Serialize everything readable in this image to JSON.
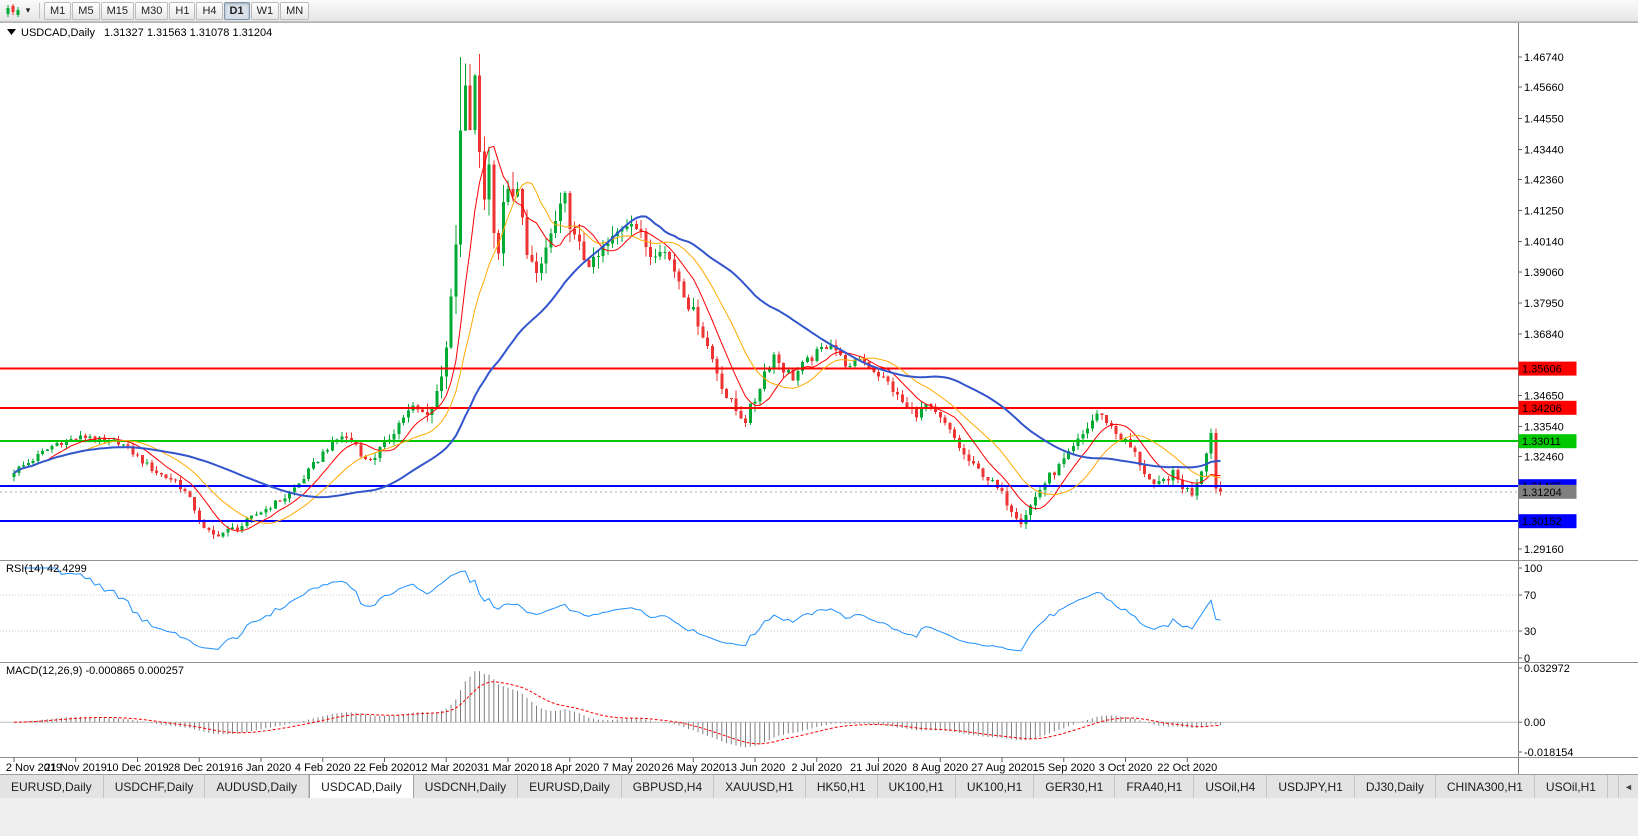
{
  "toolbar": {
    "dropdown_glyph": "▾",
    "timeframes": [
      {
        "label": "M1"
      },
      {
        "label": "M5"
      },
      {
        "label": "M15"
      },
      {
        "label": "M30"
      },
      {
        "label": "H1"
      },
      {
        "label": "H4"
      },
      {
        "label": "D1",
        "active": true
      },
      {
        "label": "W1"
      },
      {
        "label": "MN"
      }
    ]
  },
  "chart_data": {
    "type": "candlestick",
    "symbol": "USDCAD",
    "timeframe": "Daily",
    "title": "USDCAD,Daily",
    "ohlc_text": "1.31327 1.31563 1.31078 1.31204",
    "ohlc_current": {
      "open": 1.31327,
      "high": 1.31563,
      "low": 1.31078,
      "close": 1.31204
    },
    "ylim": [
      1.2916,
      1.4674
    ],
    "bar_count": 255,
    "bars_per_date_tick": 13,
    "date_ticks": [
      "2 Nov 2019",
      "21 Nov 2019",
      "10 Dec 2019",
      "28 Dec 2019",
      "16 Jan 2020",
      "4 Feb 2020",
      "22 Feb 2020",
      "12 Mar 2020",
      "31 Mar 2020",
      "18 Apr 2020",
      "7 May 2020",
      "26 May 2020",
      "13 Jun 2020",
      "2 Jul 2020",
      "21 Jul 2020",
      "8 Aug 2020",
      "27 Aug 2020",
      "15 Sep 2020",
      "3 Oct 2020",
      "22 Oct 2020"
    ],
    "price_axis_ticks": [
      "1.46740",
      "1.45660",
      "1.44550",
      "1.43440",
      "1.42360",
      "1.41250",
      "1.40140",
      "1.39060",
      "1.37950",
      "1.36840",
      "1.34650",
      "1.33540",
      "1.32460",
      "1.29160"
    ],
    "price_anchors": [
      [
        0,
        1.3195
      ],
      [
        3,
        1.3225
      ],
      [
        6,
        1.326
      ],
      [
        9,
        1.3295
      ],
      [
        13,
        1.331
      ],
      [
        16,
        1.332
      ],
      [
        19,
        1.3295
      ],
      [
        22,
        1.33
      ],
      [
        25,
        1.326
      ],
      [
        28,
        1.3215
      ],
      [
        31,
        1.318
      ],
      [
        34,
        1.316
      ],
      [
        36,
        1.312
      ],
      [
        38,
        1.306
      ],
      [
        40,
        1.2985
      ],
      [
        42,
        1.2965
      ],
      [
        45,
        1.298
      ],
      [
        48,
        1.3
      ],
      [
        51,
        1.304
      ],
      [
        54,
        1.307
      ],
      [
        57,
        1.31
      ],
      [
        60,
        1.315
      ],
      [
        63,
        1.3215
      ],
      [
        66,
        1.328
      ],
      [
        69,
        1.332
      ],
      [
        72,
        1.329
      ],
      [
        74,
        1.323
      ],
      [
        76,
        1.325
      ],
      [
        78,
        1.329
      ],
      [
        80,
        1.334
      ],
      [
        82,
        1.339
      ],
      [
        84,
        1.342
      ],
      [
        86,
        1.34
      ],
      [
        88,
        1.3425
      ],
      [
        89,
        1.3475
      ],
      [
        90,
        1.3555
      ],
      [
        91,
        1.3655
      ],
      [
        92,
        1.3775
      ],
      [
        93,
        1.399
      ],
      [
        94,
        1.439
      ],
      [
        95,
        1.453
      ],
      [
        96,
        1.443
      ],
      [
        97,
        1.457
      ],
      [
        98,
        1.434
      ],
      [
        99,
        1.419
      ],
      [
        100,
        1.428
      ],
      [
        101,
        1.409
      ],
      [
        102,
        1.3985
      ],
      [
        103,
        1.412
      ],
      [
        104,
        1.423
      ],
      [
        105,
        1.414
      ],
      [
        106,
        1.419
      ],
      [
        107,
        1.408
      ],
      [
        108,
        1.4
      ],
      [
        109,
        1.393
      ],
      [
        110,
        1.387
      ],
      [
        112,
        1.399
      ],
      [
        114,
        1.408
      ],
      [
        116,
        1.416
      ],
      [
        117,
        1.409
      ],
      [
        118,
        1.402
      ],
      [
        120,
        1.396
      ],
      [
        122,
        1.393
      ],
      [
        124,
        1.3985
      ],
      [
        126,
        1.402
      ],
      [
        128,
        1.407
      ],
      [
        130,
        1.41
      ],
      [
        132,
        1.403
      ],
      [
        134,
        1.397
      ],
      [
        136,
        1.4
      ],
      [
        138,
        1.395
      ],
      [
        140,
        1.388
      ],
      [
        142,
        1.379
      ],
      [
        144,
        1.373
      ],
      [
        146,
        1.364
      ],
      [
        148,
        1.355
      ],
      [
        150,
        1.346
      ],
      [
        152,
        1.341
      ],
      [
        154,
        1.338
      ],
      [
        156,
        1.345
      ],
      [
        158,
        1.355
      ],
      [
        160,
        1.361
      ],
      [
        162,
        1.356
      ],
      [
        164,
        1.353
      ],
      [
        166,
        1.357
      ],
      [
        168,
        1.36
      ],
      [
        170,
        1.363
      ],
      [
        172,
        1.3655
      ],
      [
        174,
        1.36
      ],
      [
        176,
        1.356
      ],
      [
        178,
        1.36
      ],
      [
        180,
        1.357
      ],
      [
        182,
        1.354
      ],
      [
        184,
        1.351
      ],
      [
        186,
        1.346
      ],
      [
        188,
        1.342
      ],
      [
        190,
        1.34
      ],
      [
        192,
        1.343
      ],
      [
        194,
        1.3395
      ],
      [
        196,
        1.336
      ],
      [
        198,
        1.331
      ],
      [
        200,
        1.325
      ],
      [
        202,
        1.321
      ],
      [
        204,
        1.3185
      ],
      [
        206,
        1.315
      ],
      [
        208,
        1.311
      ],
      [
        210,
        1.306
      ],
      [
        212,
        1.302
      ],
      [
        214,
        1.307
      ],
      [
        216,
        1.313
      ],
      [
        218,
        1.3175
      ],
      [
        220,
        1.321
      ],
      [
        222,
        1.325
      ],
      [
        224,
        1.33
      ],
      [
        226,
        1.335
      ],
      [
        228,
        1.34
      ],
      [
        230,
        1.3375
      ],
      [
        232,
        1.333
      ],
      [
        234,
        1.33
      ],
      [
        236,
        1.3255
      ],
      [
        238,
        1.319
      ],
      [
        240,
        1.3135
      ],
      [
        242,
        1.316
      ],
      [
        244,
        1.3185
      ],
      [
        246,
        1.314
      ],
      [
        248,
        1.3115
      ],
      [
        250,
        1.32
      ],
      [
        251,
        1.327
      ],
      [
        252,
        1.333
      ],
      [
        253,
        1.3135
      ],
      [
        254,
        1.312
      ]
    ],
    "volatility_anchors": [
      [
        0,
        0.002
      ],
      [
        60,
        0.002
      ],
      [
        85,
        0.0028
      ],
      [
        90,
        0.006
      ],
      [
        94,
        0.0105
      ],
      [
        100,
        0.0085
      ],
      [
        110,
        0.006
      ],
      [
        125,
        0.0048
      ],
      [
        140,
        0.0038
      ],
      [
        155,
        0.0036
      ],
      [
        170,
        0.0026
      ],
      [
        185,
        0.0024
      ],
      [
        200,
        0.0024
      ],
      [
        212,
        0.0028
      ],
      [
        228,
        0.0026
      ],
      [
        244,
        0.0024
      ],
      [
        254,
        0.0026
      ]
    ],
    "pinned_bars": [
      {
        "i": 94,
        "h": 1.4674
      },
      {
        "i": 42,
        "l": 1.2951
      },
      {
        "i": 212,
        "l": 1.2992
      },
      {
        "i": 254,
        "o": 1.31327,
        "h": 1.31563,
        "l": 1.31078,
        "c": 1.31204
      }
    ],
    "moving_averages": [
      {
        "period": 8,
        "color": "#FF0000",
        "width": 1
      },
      {
        "period": 16,
        "color": "#FFAA00",
        "width": 1
      },
      {
        "period": 40,
        "color": "#3355CC",
        "width": 2
      }
    ],
    "hlines": [
      {
        "value": 1.35606,
        "label": "1.35606",
        "color": "#FF0000",
        "width": 2
      },
      {
        "value": 1.34206,
        "label": "1.34206",
        "color": "#FF0000",
        "width": 2
      },
      {
        "value": 1.33011,
        "label": "1.33011",
        "color": "#00C800",
        "width": 2
      },
      {
        "value": 1.31405,
        "label": "1.31405",
        "color": "#0000FF",
        "width": 2
      },
      {
        "value": 1.30152,
        "label": "1.30152",
        "color": "#0000FF",
        "width": 2
      }
    ],
    "current_price": {
      "value": 1.31204,
      "label": "1.31204",
      "color": "#808080"
    },
    "rsi": {
      "label": "RSI(14) 42.4299",
      "period": 14,
      "current": 42.4299,
      "ticks": [
        "100",
        "70",
        "30",
        "0"
      ],
      "guides": [
        70,
        30
      ],
      "color": "#1E90FF"
    },
    "macd": {
      "label": "MACD(12,26,9) -0.000865 0.000257",
      "fast": 12,
      "slow": 26,
      "signal": 9,
      "current_values": [
        -0.000865,
        0.000257
      ],
      "ticks": [
        "0.032972",
        "0.00",
        "-0.018154"
      ],
      "tick_values": [
        0.032972,
        0,
        -0.018154
      ],
      "histogram_color": "#808080",
      "signal_color": "#FF0000"
    },
    "colors": {
      "up": "#00AA33",
      "down": "#EE3333",
      "background": "#FFFFFF"
    }
  },
  "tabs": {
    "active_index": 3,
    "scroll_left_glyph": "◄",
    "items": [
      {
        "label": "EURUSD,Daily"
      },
      {
        "label": "USDCHF,Daily"
      },
      {
        "label": "AUDUSD,Daily"
      },
      {
        "label": "USDCAD,Daily"
      },
      {
        "label": "USDCNH,Daily"
      },
      {
        "label": "EURUSD,Daily"
      },
      {
        "label": "GBPUSD,H4"
      },
      {
        "label": "XAUUSD,H1"
      },
      {
        "label": "HK50,H1"
      },
      {
        "label": "UK100,H1"
      },
      {
        "label": "UK100,H1"
      },
      {
        "label": "GER30,H1"
      },
      {
        "label": "FRA40,H1"
      },
      {
        "label": "USOil,H4"
      },
      {
        "label": "USDJPY,H1"
      },
      {
        "label": "DJ30,Daily"
      },
      {
        "label": "CHINA300,H1"
      },
      {
        "label": "USOil,H1"
      }
    ]
  }
}
